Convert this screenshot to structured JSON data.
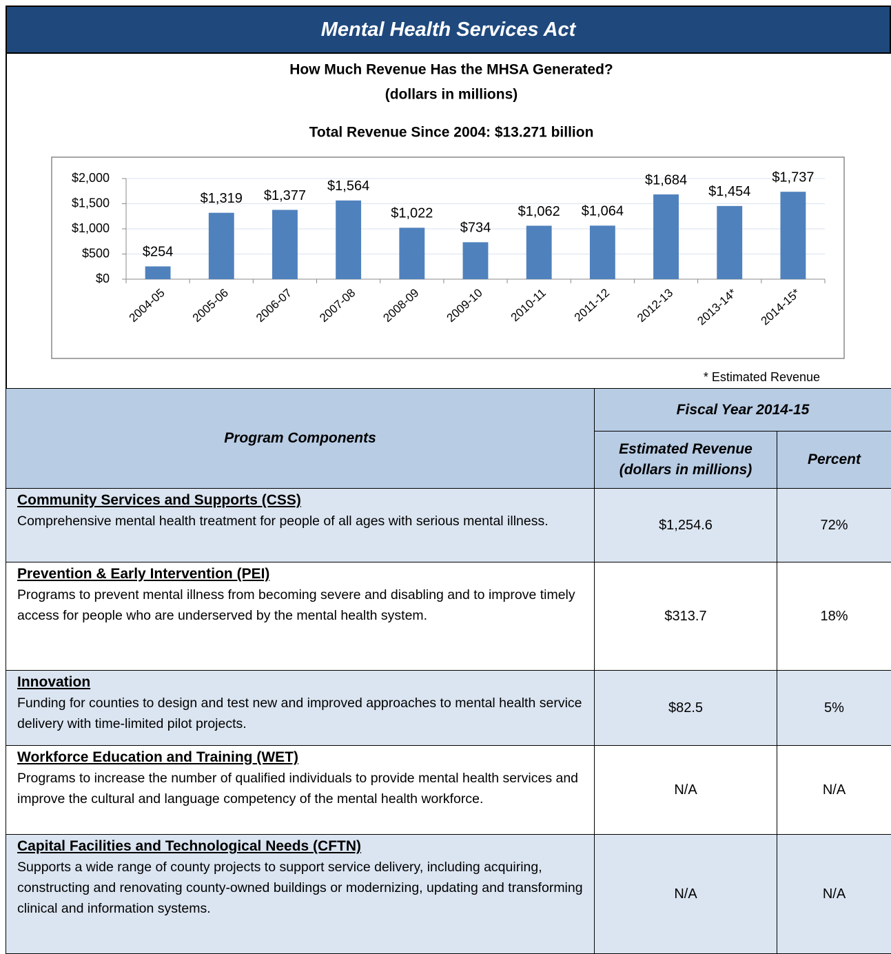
{
  "header": {
    "title": "Mental Health Services Act"
  },
  "chart_data": {
    "type": "bar",
    "title": "How Much Revenue Has the MHSA Generated?",
    "subtitle": "(dollars in millions)",
    "annotation": "Total Revenue Since 2004: $13.271 billion",
    "categories": [
      "2004-05",
      "2005-06",
      "2006-07",
      "2007-08",
      "2008-09",
      "2009-10",
      "2010-11",
      "2011-12",
      "2012-13",
      "2013-14*",
      "2014-15*"
    ],
    "values": [
      254,
      1319,
      1377,
      1564,
      1022,
      734,
      1062,
      1064,
      1684,
      1454,
      1737
    ],
    "value_labels": [
      "$254",
      "$1,319",
      "$1,377",
      "$1,564",
      "$1,022",
      "$734",
      "$1,062",
      "$1,064",
      "$1,684",
      "$1,454",
      "$1,737"
    ],
    "color": "#4f81bd",
    "ylim": [
      0,
      2000
    ],
    "yticks": [
      {
        "value": 0,
        "label": "$0"
      },
      {
        "value": 500,
        "label": "$500"
      },
      {
        "value": 1000,
        "label": "$1,000"
      },
      {
        "value": 1500,
        "label": "$1,500"
      },
      {
        "value": 2000,
        "label": "$2,000"
      }
    ],
    "grid": true,
    "footnote": "* Estimated Revenue"
  },
  "table": {
    "header": {
      "components": "Program Components",
      "fiscal_year": "Fiscal Year 2014-15",
      "revenue_line1": "Estimated Revenue",
      "revenue_line2": "(dollars in millions)",
      "percent": "Percent"
    },
    "rows": [
      {
        "name": "Community Services and Supports (CSS)",
        "description": "Comprehensive mental health treatment for people of all ages with serious mental illness.",
        "revenue": "$1,254.6",
        "percent": "72%"
      },
      {
        "name": "Prevention & Early Intervention (PEI)",
        "description": "Programs to prevent mental illness from becoming severe and disabling and to improve timely access for people who are underserved by the mental health system.",
        "revenue": "$313.7",
        "percent": "18%"
      },
      {
        "name": "Innovation",
        "description": "Funding for counties to design and test new and improved approaches to mental health service delivery with time-limited pilot projects.",
        "revenue": "$82.5",
        "percent": "5%"
      },
      {
        "name": "Workforce Education and Training (WET)",
        "description": "Programs to increase the number of qualified individuals to provide mental health services and improve the cultural and language competency of the mental health workforce.",
        "revenue": "N/A",
        "percent": "N/A"
      },
      {
        "name": "Capital Facilities and Technological Needs (CFTN)",
        "description": "Supports a wide range of county projects to support service delivery, including acquiring, constructing and renovating county-owned buildings or modernizing, updating and transforming clinical and information systems.",
        "revenue": "N/A",
        "percent": "N/A"
      }
    ]
  }
}
